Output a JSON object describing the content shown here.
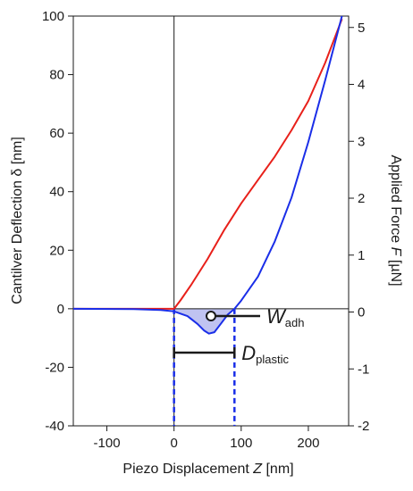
{
  "chart_data": {
    "type": "line",
    "x_axis": {
      "label_prefix": "Piezo Displacement ",
      "label_var": "Z",
      "label_suffix": " [nm]",
      "range": [
        -150,
        260
      ],
      "ticks": [
        -100,
        0,
        100,
        200
      ],
      "tick_labels": [
        "-100",
        "0",
        "100",
        "200"
      ]
    },
    "y_left": {
      "label_prefix": "Cantilver Deflection ",
      "label_var": "δ",
      "label_suffix": " [nm]",
      "range": [
        -40,
        100
      ],
      "ticks": [
        -40,
        -20,
        0,
        20,
        40,
        60,
        80,
        100
      ],
      "tick_labels": [
        "-40",
        "-20",
        "0",
        "20",
        "40",
        "60",
        "80",
        "100"
      ]
    },
    "y_right": {
      "label_prefix": "Applied Force ",
      "label_var": "F",
      "label_suffix": " [µN]",
      "range": [
        -2,
        5.2
      ],
      "ticks": [
        -2,
        -1,
        0,
        1,
        2,
        3,
        4,
        5
      ],
      "tick_labels": [
        "-2",
        "-1",
        "0",
        "1",
        "2",
        "3",
        "4",
        "5"
      ]
    },
    "grid": false,
    "series": [
      {
        "color": "#e8201a",
        "x": [
          -150,
          -50,
          -10,
          0,
          10,
          25,
          50,
          75,
          100,
          125,
          150,
          175,
          200,
          225,
          250
        ],
        "y": [
          0,
          0,
          0,
          0,
          3,
          8,
          17,
          27,
          36,
          44,
          52,
          61,
          71,
          84,
          99
        ]
      },
      {
        "color": "#1a2ee8",
        "x": [
          -150,
          -60,
          -40,
          -20,
          0,
          20,
          35,
          45,
          52,
          60,
          70,
          80,
          90,
          100,
          125,
          150,
          175,
          200,
          225,
          250
        ],
        "y": [
          0,
          -0.1,
          -0.25,
          -0.45,
          -0.9,
          -2.5,
          -5.2,
          -7.5,
          -8.5,
          -8,
          -5,
          -2,
          0,
          2.8,
          11,
          23,
          38,
          57,
          78,
          100
        ]
      }
    ],
    "fill_region": {
      "color": "#b9bdf0",
      "between": "blue-series-and-zero",
      "x_range": [
        0,
        90
      ]
    },
    "annotations": {
      "w_adh": {
        "main": "W",
        "sub": "adh",
        "marker_x": 55,
        "marker_y": -2.5
      },
      "d_plastic": {
        "main": "D",
        "sub": "plastic",
        "x_start": 0,
        "x_end": 90,
        "y": -15
      }
    },
    "vertical_lines": [
      {
        "x": 0,
        "style": "solid",
        "color": "#1a1a1a"
      },
      {
        "x": 0,
        "style": "dashed",
        "color": "#1a2ee8",
        "y_range": [
          0,
          -40
        ]
      },
      {
        "x": 90,
        "style": "dashed",
        "color": "#1a2ee8",
        "y_range": [
          0,
          -40
        ]
      }
    ],
    "horizontal_lines": [
      {
        "y": 0,
        "style": "solid",
        "color": "#1a1a1a"
      }
    ]
  }
}
